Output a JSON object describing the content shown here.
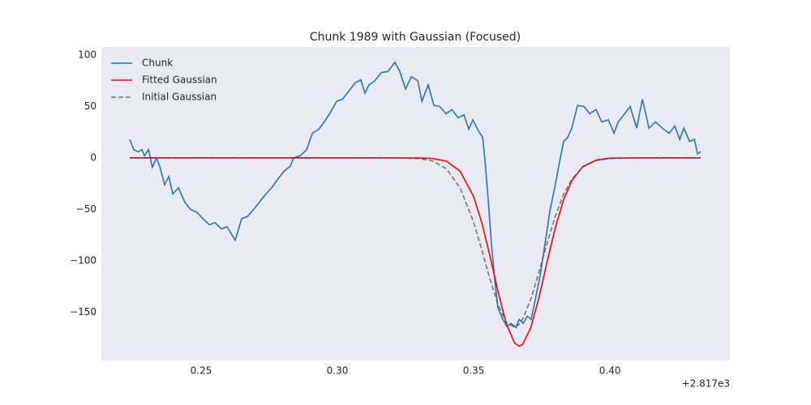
{
  "chart_data": {
    "type": "line",
    "title": "Chunk 1989 with Gaussian (Focused)",
    "x_offset_label": "+2.817e3",
    "xlim": [
      0.2134,
      0.444
    ],
    "xticks": [
      {
        "value": 0.25,
        "label": "0.25"
      },
      {
        "value": 0.3,
        "label": "0.30"
      },
      {
        "value": 0.35,
        "label": "0.35"
      },
      {
        "value": 0.4,
        "label": "0.40"
      }
    ],
    "ylim": [
      -197,
      107.9
    ],
    "yticks": [
      {
        "value": -150,
        "label": "−150"
      },
      {
        "value": -100,
        "label": "−100"
      },
      {
        "value": -50,
        "label": "−50"
      },
      0,
      50,
      100
    ],
    "grid": false,
    "legend": "upper left",
    "background": "#eaeaf2",
    "series": [
      {
        "name": "Chunk",
        "color": "#1f77b4",
        "dash": "solid",
        "x": [
          0.2238,
          0.2253,
          0.2268,
          0.2283,
          0.2292,
          0.2307,
          0.2321,
          0.2336,
          0.2348,
          0.2366,
          0.2381,
          0.2396,
          0.2417,
          0.244,
          0.2461,
          0.2485,
          0.2506,
          0.253,
          0.2551,
          0.2574,
          0.2595,
          0.2625,
          0.2649,
          0.267,
          0.2693,
          0.2714,
          0.2738,
          0.2759,
          0.2783,
          0.2804,
          0.2827,
          0.2839,
          0.2863,
          0.2887,
          0.2908,
          0.2932,
          0.2952,
          0.2976,
          0.2997,
          0.3018,
          0.3042,
          0.3065,
          0.3086,
          0.3101,
          0.3116,
          0.3137,
          0.3161,
          0.3185,
          0.3211,
          0.3229,
          0.325,
          0.3271,
          0.3295,
          0.331,
          0.3333,
          0.3354,
          0.3375,
          0.3399,
          0.342,
          0.3443,
          0.3464,
          0.3482,
          0.3497,
          0.3518,
          0.3533,
          0.3542,
          0.3554,
          0.3565,
          0.3577,
          0.3589,
          0.3607,
          0.3622,
          0.3637,
          0.3655,
          0.3667,
          0.3682,
          0.3696,
          0.3711,
          0.3726,
          0.3744,
          0.3762,
          0.378,
          0.3798,
          0.3815,
          0.383,
          0.3845,
          0.386,
          0.3881,
          0.3905,
          0.3926,
          0.3949,
          0.397,
          0.3994,
          0.4015,
          0.403,
          0.4054,
          0.4074,
          0.4098,
          0.4119,
          0.4143,
          0.4167,
          0.4196,
          0.4217,
          0.4238,
          0.4256,
          0.4271,
          0.4292,
          0.431,
          0.4321,
          0.4333
        ],
        "values": [
          18,
          8,
          6,
          8,
          2,
          8,
          -9,
          0,
          -8,
          -26,
          -18,
          -35,
          -29,
          -43,
          -50,
          -53,
          -59,
          -65,
          -63,
          -69,
          -67,
          -80,
          -59,
          -57,
          -50,
          -43,
          -35,
          -29,
          -20,
          -13,
          -8,
          0,
          2,
          8,
          24,
          28,
          35,
          45,
          55,
          57,
          65,
          73,
          76,
          63,
          71,
          75,
          83,
          84,
          93,
          84,
          67,
          79,
          75,
          55,
          71,
          51,
          50,
          43,
          47,
          39,
          42,
          28,
          37,
          26,
          20,
          -4,
          -43,
          -83,
          -118,
          -146,
          -157,
          -164,
          -161,
          -165,
          -157,
          -161,
          -154,
          -157,
          -138,
          -114,
          -83,
          -51,
          -28,
          -4,
          16,
          20,
          29,
          51,
          50,
          43,
          47,
          35,
          37,
          24,
          35,
          43,
          50,
          29,
          57,
          29,
          35,
          28,
          24,
          31,
          18,
          29,
          16,
          18,
          4,
          6
        ]
      },
      {
        "name": "Fitted Gaussian",
        "color": "#ff0000",
        "dash": "solid",
        "x": [
          0.2238,
          0.3,
          0.32,
          0.33,
          0.335,
          0.34,
          0.345,
          0.35,
          0.353,
          0.356,
          0.359,
          0.362,
          0.365,
          0.3667,
          0.368,
          0.371,
          0.374,
          0.377,
          0.38,
          0.383,
          0.386,
          0.39,
          0.395,
          0.4,
          0.41,
          0.4333
        ],
        "values": [
          0,
          0,
          0,
          -0.1,
          -0.6,
          -3.2,
          -12.8,
          -37.7,
          -63.3,
          -95.7,
          -130.8,
          -161.5,
          -180,
          -183,
          -181.3,
          -164.8,
          -135.3,
          -100.4,
          -67.3,
          -40.7,
          -22.2,
          -8.5,
          -2,
          -0.3,
          0,
          0
        ]
      },
      {
        "name": "Initial Gaussian",
        "color": "#4d4d4d",
        "dash": "dashed",
        "x": [
          0.2238,
          0.3,
          0.32,
          0.33,
          0.335,
          0.34,
          0.345,
          0.35,
          0.353,
          0.356,
          0.359,
          0.362,
          0.365,
          0.3667,
          0.368,
          0.371,
          0.374,
          0.377,
          0.38,
          0.383,
          0.386,
          0.39,
          0.395,
          0.4,
          0.41,
          0.4333
        ],
        "values": [
          0,
          0,
          0,
          -0.7,
          -3.1,
          -10.6,
          -28.9,
          -62.7,
          -89.6,
          -118,
          -143.1,
          -160,
          -164.9,
          -161.7,
          -156.6,
          -137,
          -110.5,
          -82.2,
          -56.3,
          -35.5,
          -20.7,
          -8.8,
          -2.5,
          -0.6,
          0,
          0
        ]
      }
    ]
  }
}
